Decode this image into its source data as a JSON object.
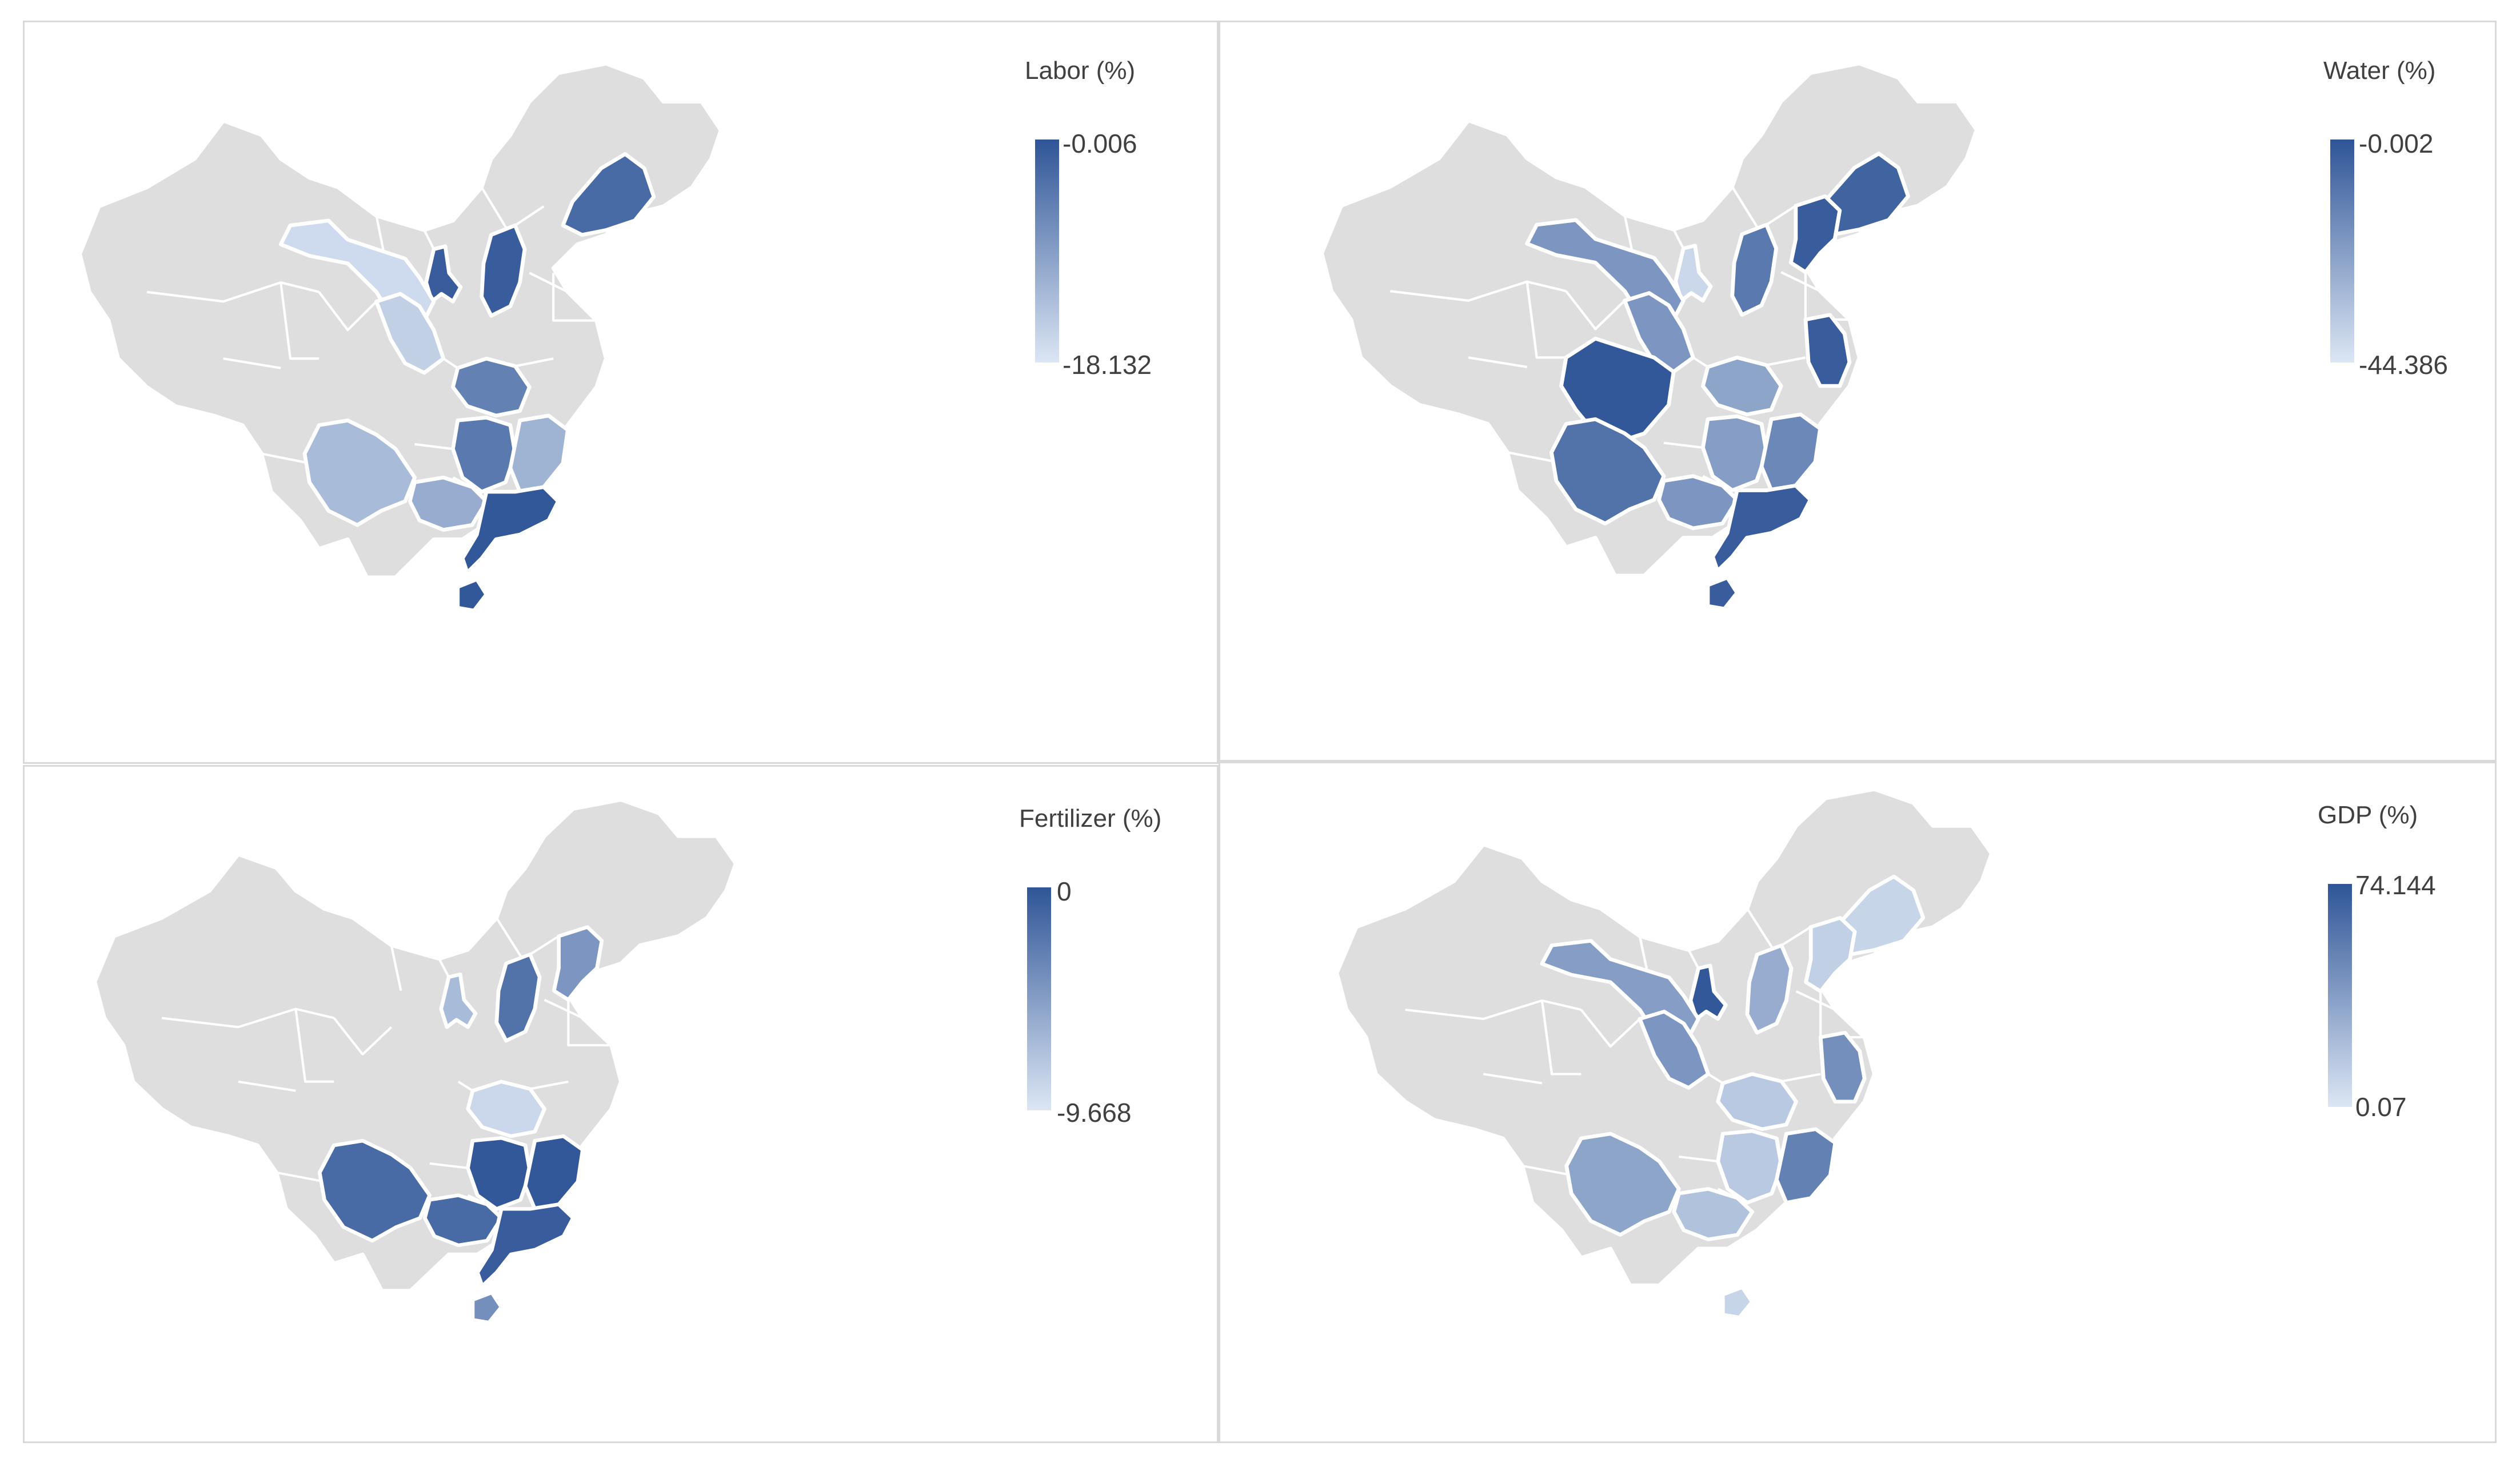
{
  "colors": {
    "base": "#dedede",
    "high": "#2f5597",
    "low": "#dce6f4",
    "border": "#ffffff"
  },
  "maps": [
    {
      "id": "labor",
      "legend": {
        "title": "Labor (%)",
        "max": "-0.006",
        "min": "-18.132"
      },
      "shaded": [
        {
          "region": "northeast-coast",
          "level": 0.85
        },
        {
          "region": "north-center",
          "level": 0.95
        },
        {
          "region": "small-north",
          "level": 0.95
        },
        {
          "region": "northwest-band",
          "level": 0.08
        },
        {
          "region": "central-west",
          "level": 0.15
        },
        {
          "region": "central",
          "level": 0.7
        },
        {
          "region": "central-south",
          "level": 0.75
        },
        {
          "region": "east-coast",
          "level": 0.35
        },
        {
          "region": "southwest",
          "level": 0.3
        },
        {
          "region": "south-central",
          "level": 0.4
        },
        {
          "region": "south-coast",
          "level": 0.98
        },
        {
          "region": "island",
          "level": 0.98
        }
      ]
    },
    {
      "id": "water",
      "legend": {
        "title": "Water (%)",
        "max": "-0.002",
        "min": "-44.386"
      },
      "shaded": [
        {
          "region": "northeast-coast",
          "level": 0.9
        },
        {
          "region": "north-east-inner",
          "level": 0.95
        },
        {
          "region": "north-center",
          "level": 0.75
        },
        {
          "region": "small-north",
          "level": 0.1
        },
        {
          "region": "northwest-band",
          "level": 0.55
        },
        {
          "region": "central-west",
          "level": 0.55
        },
        {
          "region": "west-big",
          "level": 0.98
        },
        {
          "region": "east-north",
          "level": 0.95
        },
        {
          "region": "central",
          "level": 0.45
        },
        {
          "region": "central-south",
          "level": 0.5
        },
        {
          "region": "east-coast",
          "level": 0.65
        },
        {
          "region": "southwest",
          "level": 0.8
        },
        {
          "region": "south-central",
          "level": 0.55
        },
        {
          "region": "south-coast",
          "level": 0.95
        },
        {
          "region": "island",
          "level": 0.95
        }
      ]
    },
    {
      "id": "fertilizer",
      "legend": {
        "title": "Fertilizer (%)",
        "max": "0",
        "min": "-9.668"
      },
      "shaded": [
        {
          "region": "north-center",
          "level": 0.8
        },
        {
          "region": "north-east-inner",
          "level": 0.55
        },
        {
          "region": "small-north",
          "level": 0.3
        },
        {
          "region": "central",
          "level": 0.1
        },
        {
          "region": "central-south",
          "level": 0.98
        },
        {
          "region": "east-coast",
          "level": 0.98
        },
        {
          "region": "southwest",
          "level": 0.85
        },
        {
          "region": "south-central",
          "level": 0.85
        },
        {
          "region": "south-coast",
          "level": 0.95
        },
        {
          "region": "island",
          "level": 0.6
        }
      ]
    },
    {
      "id": "gdp",
      "legend": {
        "title": "GDP (%)",
        "max": "74.144",
        "min": "0.07"
      },
      "shaded": [
        {
          "region": "northeast-coast",
          "level": 0.12
        },
        {
          "region": "north-east-inner",
          "level": 0.15
        },
        {
          "region": "north-center",
          "level": 0.4
        },
        {
          "region": "small-north",
          "level": 0.98
        },
        {
          "region": "northwest-band",
          "level": 0.5
        },
        {
          "region": "central-west",
          "level": 0.55
        },
        {
          "region": "east-north",
          "level": 0.6
        },
        {
          "region": "central",
          "level": 0.2
        },
        {
          "region": "central-south",
          "level": 0.2
        },
        {
          "region": "east-coast",
          "level": 0.7
        },
        {
          "region": "southwest",
          "level": 0.45
        },
        {
          "region": "south-central",
          "level": 0.25
        },
        {
          "region": "island",
          "level": 0.12
        }
      ]
    }
  ]
}
